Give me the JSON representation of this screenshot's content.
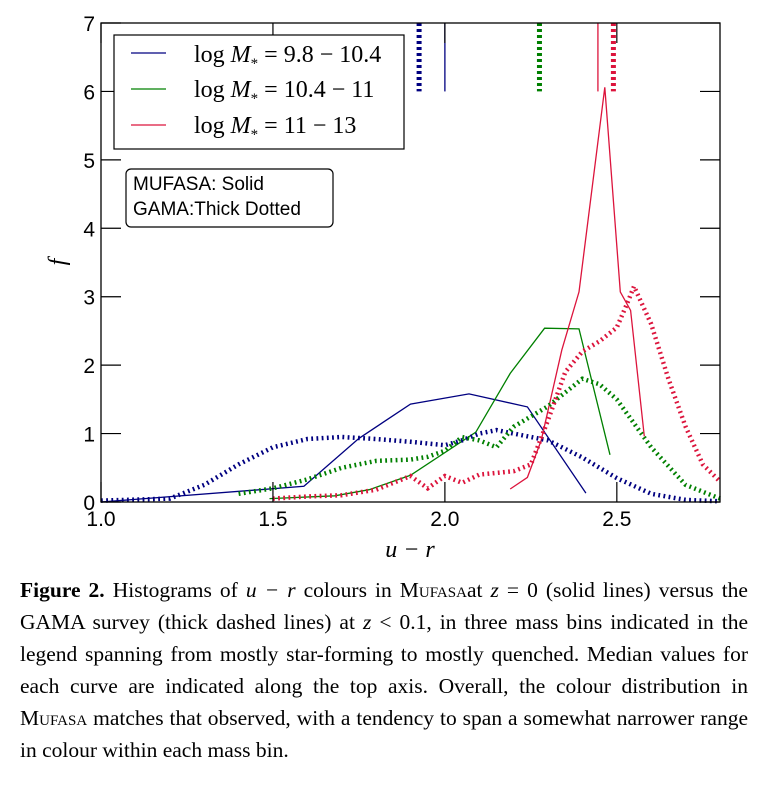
{
  "chart_data": {
    "type": "line",
    "title": "",
    "xlabel": "u − r",
    "ylabel": "f",
    "xlim": [
      1.0,
      2.8
    ],
    "ylim": [
      0,
      7
    ],
    "xticks": [
      1.0,
      1.5,
      2.0,
      2.5
    ],
    "xtick_labels": [
      "1.0",
      "1.5",
      "2.0",
      "2.5"
    ],
    "yticks": [
      0,
      1,
      2,
      3,
      4,
      5,
      6,
      7
    ],
    "ytick_labels": [
      "0",
      "1",
      "2",
      "3",
      "4",
      "5",
      "6",
      "7"
    ],
    "grid": false,
    "legend_position": "top-left",
    "legend": [
      {
        "prefix": "log ",
        "var": "M",
        "sub": "*",
        "rest": " = 9.8 − 10.4",
        "color": "#000080"
      },
      {
        "prefix": "log ",
        "var": "M",
        "sub": "*",
        "rest": " = 10.4 − 11",
        "color": "#008000"
      },
      {
        "prefix": "log ",
        "var": "M",
        "sub": "*",
        "rest": " = 11 − 13",
        "color": "#dc143c"
      }
    ],
    "annotation": [
      "MUFASA: Solid",
      "GAMA:Thick Dotted"
    ],
    "series": [
      {
        "name": "MUFASA 9.8-10.4",
        "style": "solid",
        "color": "#000080",
        "x": [
          1.0,
          1.59,
          1.75,
          1.9,
          2.07,
          2.24,
          2.41
        ],
        "y": [
          0.0,
          0.23,
          0.93,
          1.43,
          1.58,
          1.39,
          0.13
        ]
      },
      {
        "name": "MUFASA 10.4-11",
        "style": "solid",
        "color": "#008000",
        "x": [
          1.49,
          1.68,
          1.78,
          1.9,
          2.09,
          2.19,
          2.29,
          2.39,
          2.48
        ],
        "y": [
          0.05,
          0.09,
          0.18,
          0.39,
          1.02,
          1.88,
          2.54,
          2.53,
          0.69
        ]
      },
      {
        "name": "MUFASA 11-13",
        "style": "solid",
        "color": "#dc143c",
        "x": [
          2.19,
          2.24,
          2.28,
          2.34,
          2.39,
          2.465,
          2.51,
          2.54,
          2.58
        ],
        "y": [
          0.19,
          0.36,
          0.9,
          2.22,
          3.07,
          6.06,
          3.07,
          2.8,
          0.96
        ]
      },
      {
        "name": "GAMA 9.8-10.4",
        "style": "dotted",
        "color": "#000080",
        "x": [
          1.0,
          1.2,
          1.3,
          1.4,
          1.5,
          1.6,
          1.7,
          1.8,
          1.9,
          2.0,
          2.05,
          2.1,
          2.15,
          2.2,
          2.3,
          2.4,
          2.5,
          2.6,
          2.7,
          2.8
        ],
        "y": [
          0.02,
          0.05,
          0.25,
          0.55,
          0.8,
          0.92,
          0.95,
          0.92,
          0.88,
          0.83,
          0.9,
          1.0,
          1.05,
          1.0,
          0.9,
          0.65,
          0.35,
          0.12,
          0.03,
          0.01
        ]
      },
      {
        "name": "GAMA 10.4-11",
        "style": "dotted",
        "color": "#008000",
        "x": [
          1.4,
          1.5,
          1.6,
          1.7,
          1.8,
          1.9,
          1.95,
          2.0,
          2.05,
          2.1,
          2.15,
          2.2,
          2.3,
          2.4,
          2.45,
          2.5,
          2.6,
          2.7,
          2.8
        ],
        "y": [
          0.12,
          0.2,
          0.33,
          0.5,
          0.6,
          0.62,
          0.66,
          0.75,
          0.95,
          0.9,
          0.8,
          1.1,
          1.4,
          1.8,
          1.72,
          1.5,
          0.8,
          0.25,
          0.05
        ]
      },
      {
        "name": "GAMA 11-13",
        "style": "dotted",
        "color": "#dc143c",
        "x": [
          1.5,
          1.6,
          1.7,
          1.8,
          1.9,
          1.95,
          2.0,
          2.05,
          2.1,
          2.2,
          2.25,
          2.3,
          2.35,
          2.4,
          2.45,
          2.5,
          2.53,
          2.55,
          2.6,
          2.65,
          2.7,
          2.75,
          2.8
        ],
        "y": [
          0.05,
          0.08,
          0.1,
          0.18,
          0.38,
          0.2,
          0.38,
          0.28,
          0.4,
          0.45,
          0.55,
          1.2,
          1.9,
          2.2,
          2.35,
          2.55,
          2.9,
          3.15,
          2.6,
          1.8,
          1.1,
          0.55,
          0.3
        ]
      }
    ],
    "medians": [
      {
        "name": "GAMA 9.8-10.4",
        "style": "dotted",
        "color": "#000080",
        "x": 1.925
      },
      {
        "name": "MUFASA 9.8-10.4",
        "style": "solid",
        "color": "#000080",
        "x": 2.0
      },
      {
        "name": "GAMA 10.4-11",
        "style": "dotted",
        "color": "#008000",
        "x": 2.275
      },
      {
        "name": "MUFASA 11-13",
        "style": "solid",
        "color": "#dc143c",
        "x": 2.445
      },
      {
        "name": "GAMA 11-13",
        "style": "dotted",
        "color": "#dc143c",
        "x": 2.49
      }
    ],
    "median_marker_bottom": 6.0
  },
  "caption": {
    "label": "Figure 2.",
    "t1": " Histograms of ",
    "m1": "u − r",
    "t2": " colours in ",
    "sc1": "Mufasa",
    "t3": "at ",
    "m2": "z",
    "t4": " = 0 (solid lines) versus the GAMA survey (thick dashed lines) at ",
    "m3": "z",
    "t5": " < 0.1, in three mass bins indicated in the legend spanning from mostly star-forming to mostly quenched. Median values for each curve are indicated along the top axis. Overall, the colour distribution in ",
    "sc2": "Mufasa",
    "t6": " matches that observed, with a tendency to span a somewhat narrower range in colour within each mass bin."
  }
}
